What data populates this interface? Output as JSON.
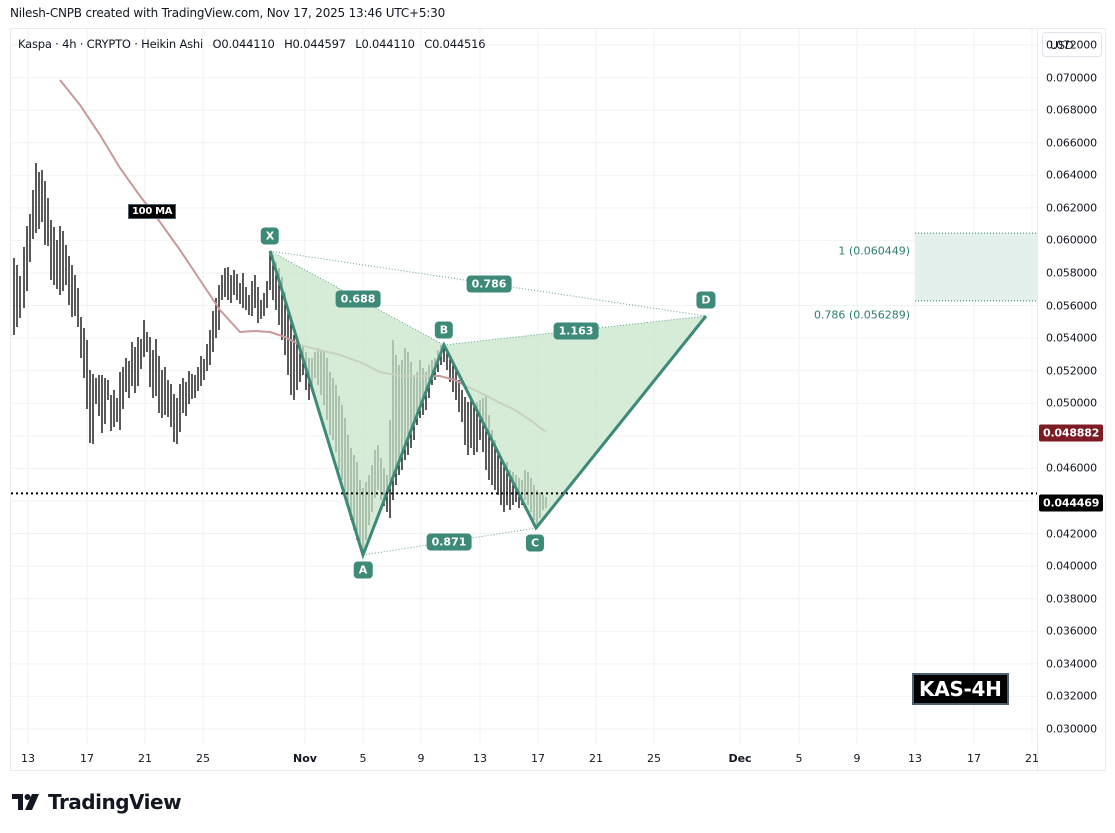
{
  "header": {
    "credit": "Nilesh-CNPB created with TradingView.com, Nov 17, 2025 13:46 UTC+5:30"
  },
  "legend": {
    "symbol": "Kaspa · 4h · CRYPTO · Heikin Ashi",
    "open": "O0.044110",
    "high": "H0.044597",
    "low": "L0.044110",
    "close": "C0.044516"
  },
  "price_axis": {
    "currency": "USD",
    "ticks": [
      "0.072000",
      "0.070000",
      "0.068000",
      "0.066000",
      "0.064000",
      "0.062000",
      "0.060000",
      "0.058000",
      "0.056000",
      "0.054000",
      "0.052000",
      "0.050000",
      "0.048000",
      "0.046000",
      "0.044000",
      "0.042000",
      "0.040000",
      "0.038000",
      "0.036000",
      "0.034000",
      "0.032000",
      "0.030000"
    ],
    "ma_price_tag": "0.048882",
    "ma_color": "#7d1c24",
    "last_price_tag": "0.044469",
    "last_price_color": "#000000"
  },
  "time_axis": {
    "ticks": [
      {
        "label": "13",
        "bold": false
      },
      {
        "label": "17",
        "bold": false
      },
      {
        "label": "21",
        "bold": false
      },
      {
        "label": "25",
        "bold": false
      },
      {
        "label": "Nov",
        "bold": true
      },
      {
        "label": "5",
        "bold": false
      },
      {
        "label": "9",
        "bold": false
      },
      {
        "label": "13",
        "bold": false
      },
      {
        "label": "17",
        "bold": false
      },
      {
        "label": "21",
        "bold": false
      },
      {
        "label": "25",
        "bold": false
      },
      {
        "label": "Dec",
        "bold": true
      },
      {
        "label": "5",
        "bold": false
      },
      {
        "label": "9",
        "bold": false
      },
      {
        "label": "13",
        "bold": false
      },
      {
        "label": "17",
        "bold": false
      },
      {
        "label": "21",
        "bold": false
      }
    ]
  },
  "annotations": {
    "ma_label": "100 MA",
    "watermark": "KAS-4H",
    "fib_levels": [
      {
        "label": "1 (0.060449)",
        "price": 0.060449
      },
      {
        "label": "0.786 (0.056289)",
        "price": 0.056289
      }
    ],
    "pattern_points": {
      "X": "X",
      "A": "A",
      "B": "B",
      "C": "C",
      "D": "D"
    },
    "ratios": {
      "XB": "0.688",
      "XD": "0.786",
      "BD": "1.163",
      "AC": "0.871"
    }
  },
  "branding": {
    "logo_text": "TradingView"
  },
  "colors": {
    "pattern_line": "#3d8a78",
    "pattern_fill": "#c8e6c9",
    "ma_line": "#c9999a",
    "candles": "#000000",
    "zone_fill": "#e3f0ec"
  },
  "chart_data": {
    "type": "line",
    "title": "Kaspa · 4h · CRYPTO · Heikin Ashi",
    "xlabel": "",
    "ylabel": "USD",
    "ylim": [
      0.029,
      0.073
    ],
    "grid": true,
    "x_ticks": [
      "13",
      "17",
      "21",
      "25",
      "Nov",
      "5",
      "9",
      "13",
      "17",
      "21",
      "25",
      "Dec",
      "5",
      "9",
      "13",
      "17",
      "21"
    ],
    "ohlc_last": {
      "open": 0.04411,
      "high": 0.044597,
      "low": 0.04411,
      "close": 0.044516
    },
    "last_price": 0.044469,
    "series": [
      {
        "name": "Harmonic pattern (XABCD)",
        "points": [
          {
            "label": "X",
            "date": "Oct 31",
            "value": 0.0605
          },
          {
            "label": "A",
            "date": "Nov 5",
            "value": 0.0411
          },
          {
            "label": "B",
            "date": "Nov 10",
            "value": 0.0543
          },
          {
            "label": "C",
            "date": "Nov 17",
            "value": 0.043
          },
          {
            "label": "D",
            "date": "Nov 29",
            "value": 0.0563
          }
        ]
      },
      {
        "name": "100 MA",
        "points": [
          {
            "date": "Oct 13",
            "value": 0.0722
          },
          {
            "date": "Oct 17",
            "value": 0.0685
          },
          {
            "date": "Oct 21",
            "value": 0.064
          },
          {
            "date": "Oct 25",
            "value": 0.058
          },
          {
            "date": "Oct 27",
            "value": 0.0553
          },
          {
            "date": "Oct 31",
            "value": 0.055
          },
          {
            "date": "Nov 5",
            "value": 0.0536
          },
          {
            "date": "Nov 9",
            "value": 0.0525
          },
          {
            "date": "Nov 13",
            "value": 0.0515
          },
          {
            "date": "Nov 17",
            "value": 0.04888
          }
        ]
      }
    ],
    "ratios": [
      {
        "legs": "XA-B",
        "value": 0.688
      },
      {
        "legs": "XA-D",
        "value": 0.786
      },
      {
        "legs": "AB-C",
        "value": 0.871
      },
      {
        "legs": "BC-D",
        "value": 1.163
      }
    ],
    "target_zone": {
      "upper": 0.060449,
      "lower": 0.056289,
      "upper_label": "1",
      "lower_label": "0.786"
    }
  }
}
